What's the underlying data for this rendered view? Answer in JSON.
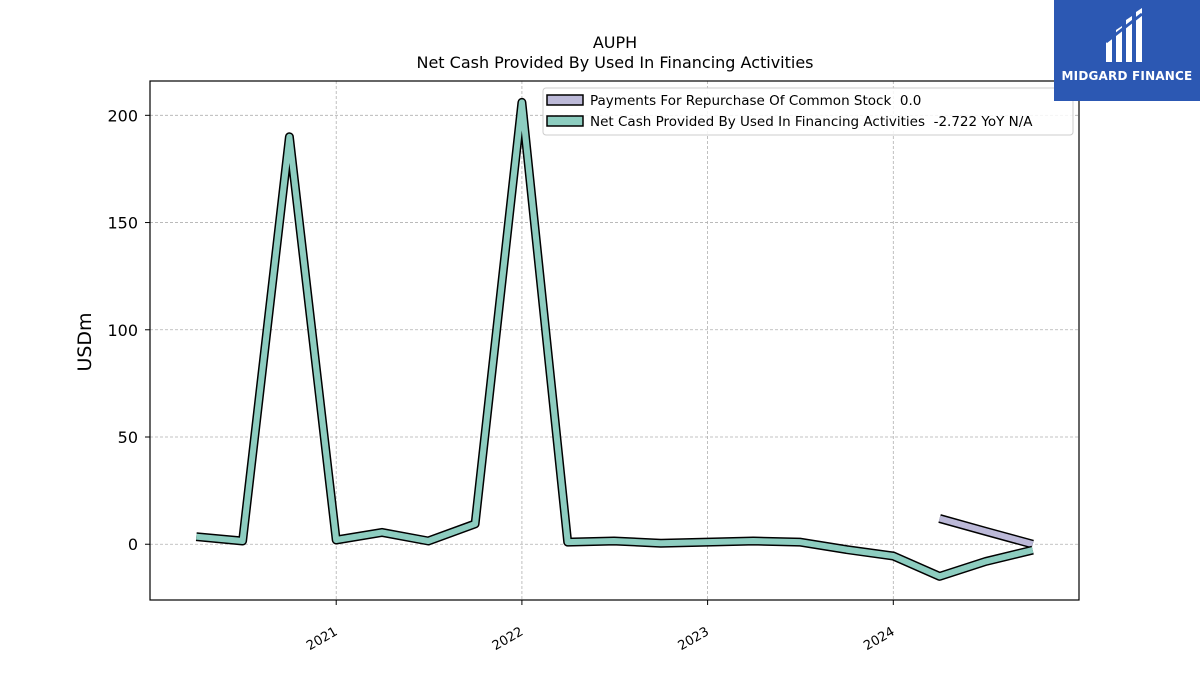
{
  "brand": {
    "name": "MIDGARD FINANCE",
    "color": "#2c58b3"
  },
  "chart_data": {
    "type": "line",
    "title": "AUPH",
    "subtitle": "Net Cash Provided By Used In Financing Activities",
    "ylabel": "USDm",
    "xlabel": "",
    "ylim": [
      -26,
      216
    ],
    "xlim": [
      "2020-01-01",
      "2024-12-31"
    ],
    "yticks": [
      0,
      50,
      100,
      150,
      200
    ],
    "xticks": [
      "2021",
      "2022",
      "2023",
      "2024"
    ],
    "grid": true,
    "legend_position": "top-right",
    "series": [
      {
        "name": "Payments For Repurchase Of Common Stock  0.0",
        "color": "#bcb9d8",
        "points": [
          [
            "2024-04-01",
            12.0
          ],
          [
            "2024-07-01",
            6.0
          ],
          [
            "2024-10-01",
            0.0
          ]
        ]
      },
      {
        "name": "Net Cash Provided By Used In Financing Activities  -2.722 YoY N/A",
        "color": "#8dcdc0",
        "points": [
          [
            "2020-04-01",
            3.5
          ],
          [
            "2020-07-01",
            1.5
          ],
          [
            "2020-10-01",
            190.0
          ],
          [
            "2021-01-01",
            2.0
          ],
          [
            "2021-04-01",
            5.5
          ],
          [
            "2021-07-01",
            1.5
          ],
          [
            "2021-10-01",
            9.5
          ],
          [
            "2022-01-01",
            206.0
          ],
          [
            "2022-04-01",
            1.0
          ],
          [
            "2022-07-01",
            1.5
          ],
          [
            "2022-10-01",
            0.5
          ],
          [
            "2023-01-01",
            1.0
          ],
          [
            "2023-04-01",
            1.5
          ],
          [
            "2023-07-01",
            1.0
          ],
          [
            "2023-10-01",
            -2.5
          ],
          [
            "2024-01-01",
            -5.5
          ],
          [
            "2024-04-01",
            -15.0
          ],
          [
            "2024-07-01",
            -8.0
          ],
          [
            "2024-10-01",
            -2.722
          ]
        ]
      }
    ]
  }
}
